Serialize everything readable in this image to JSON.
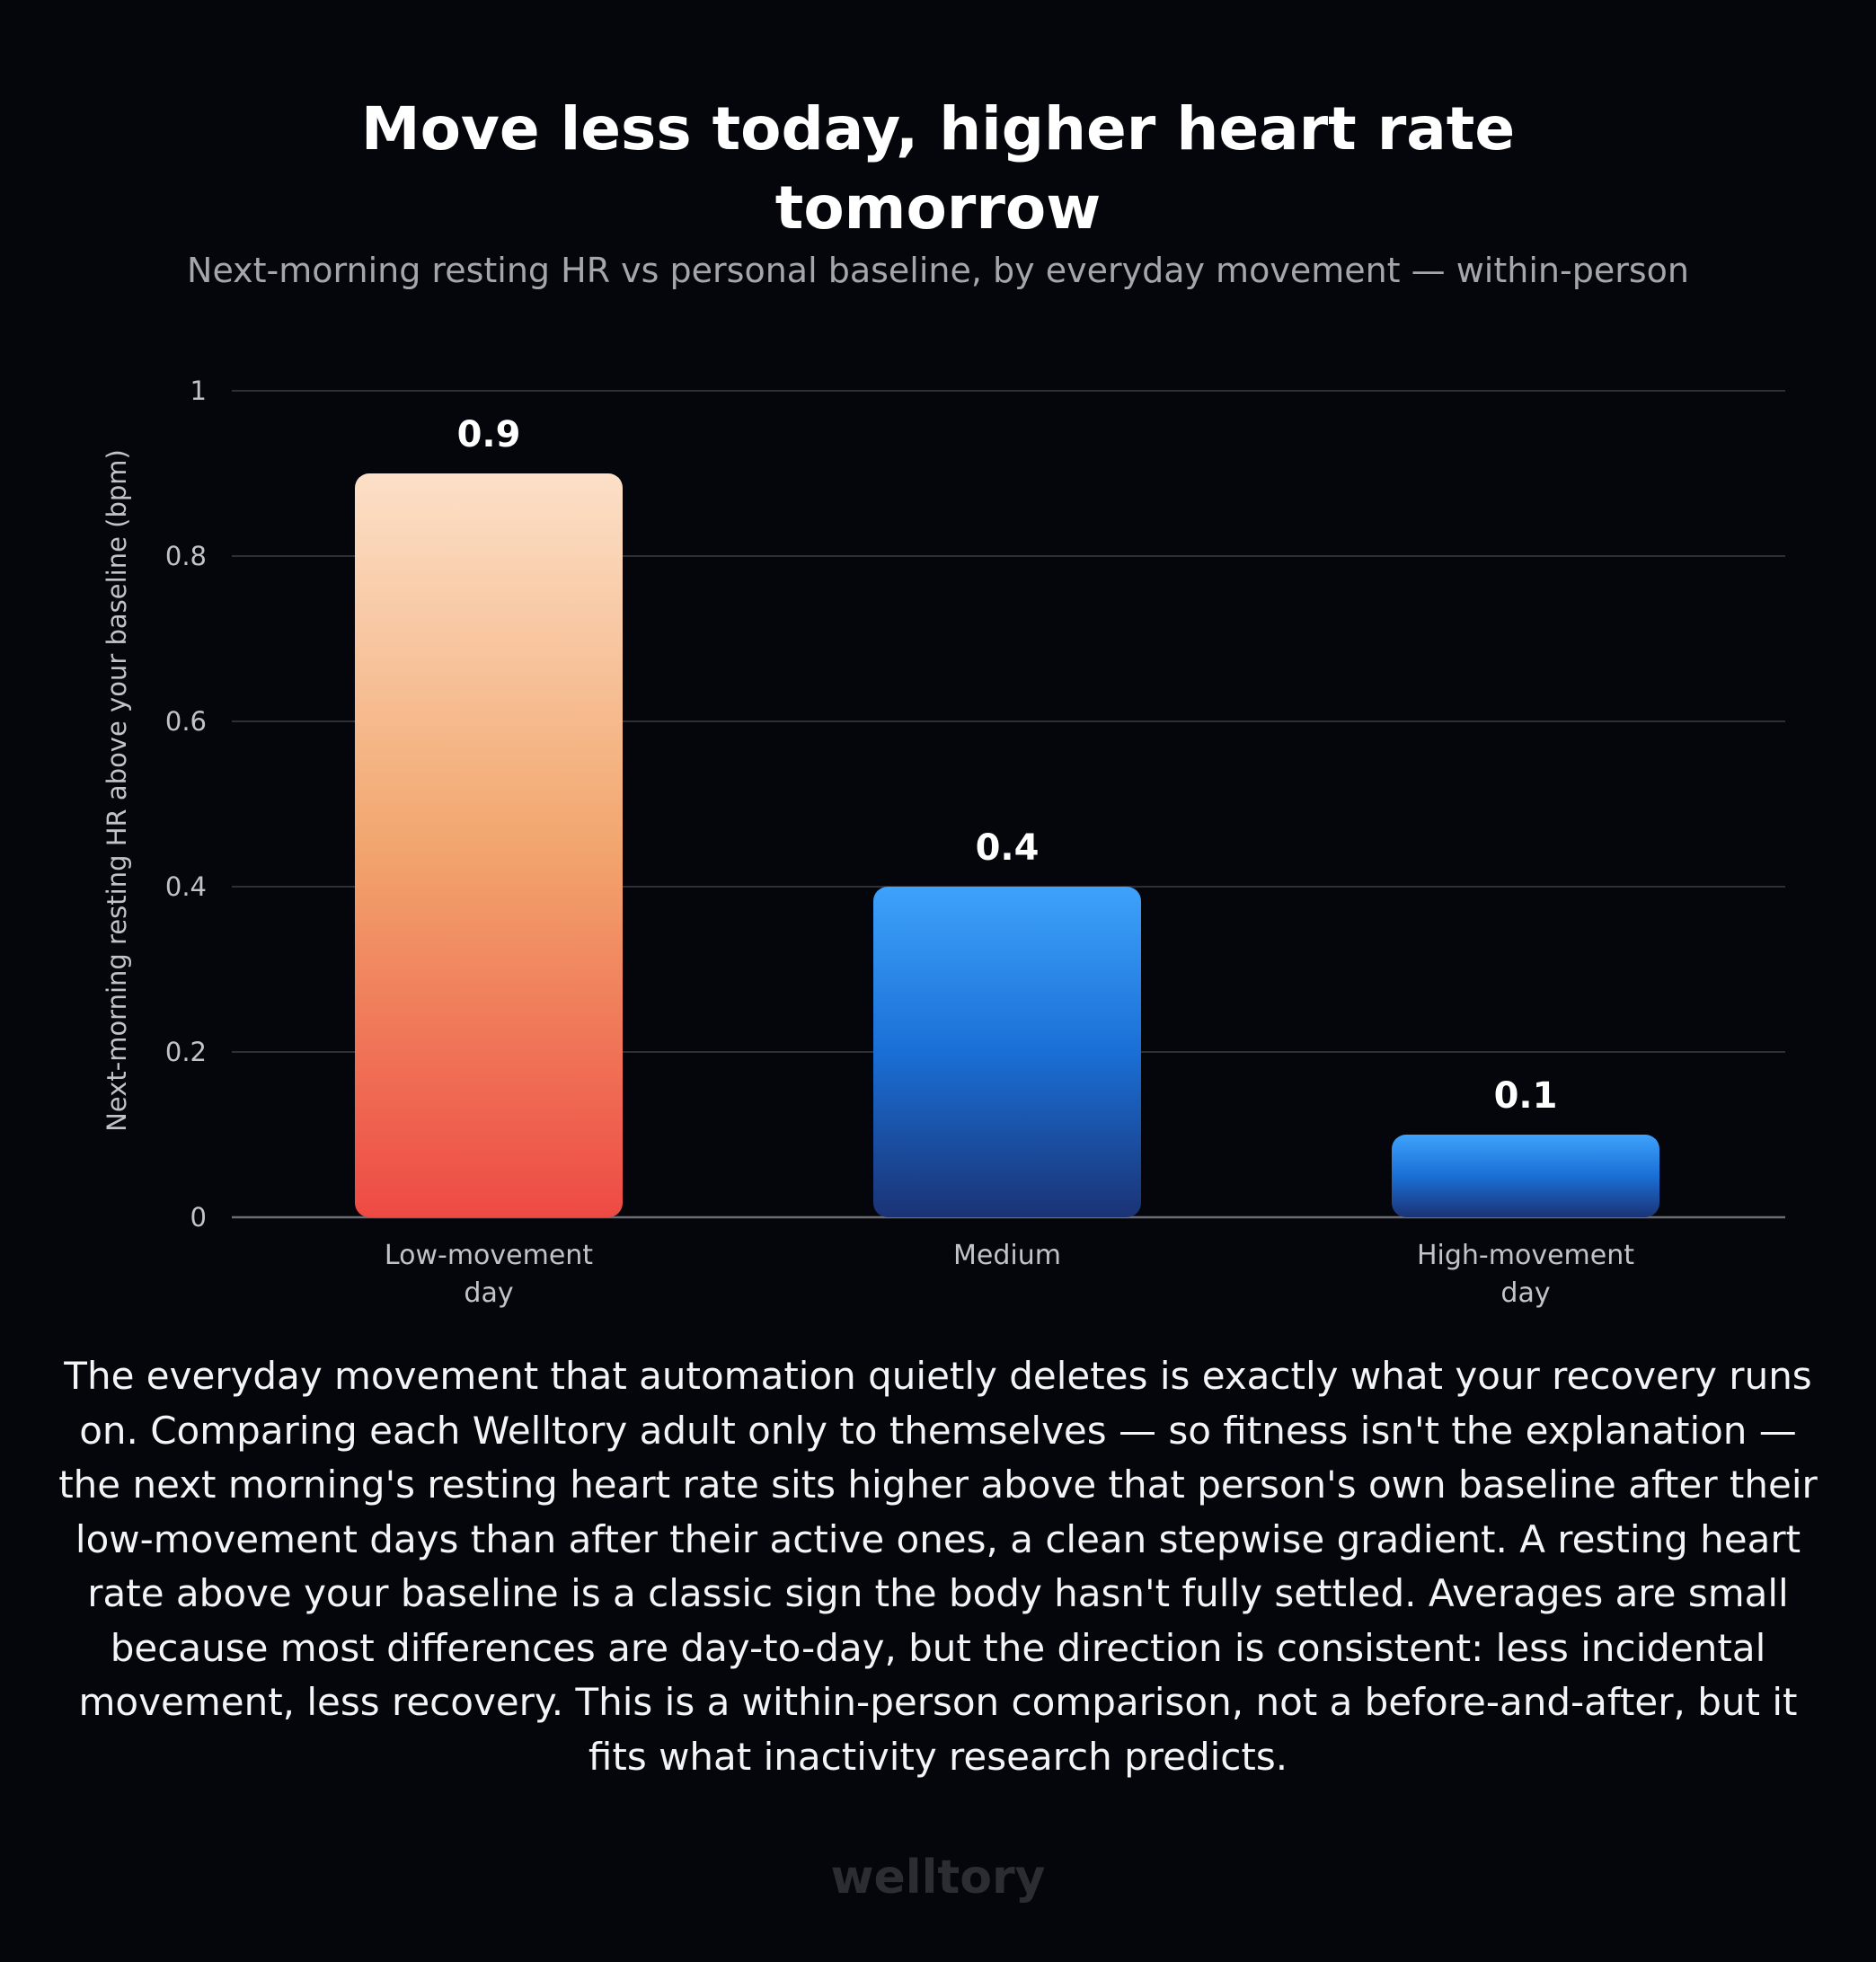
{
  "header": {
    "title": "Move less today, higher heart rate\ntomorrow",
    "subtitle": "Next-morning resting HR vs personal baseline, by everyday movement — within-person"
  },
  "chart_data": {
    "type": "bar",
    "categories": [
      [
        "Low-movement",
        "day"
      ],
      [
        "Medium"
      ],
      [
        "High-movement",
        "day"
      ]
    ],
    "values": [
      0.9,
      0.4,
      0.1
    ],
    "value_labels": [
      "0.9",
      "0.4",
      "0.1"
    ],
    "ylabel": "Next-morning resting HR above your baseline (bpm)",
    "ylim": [
      0,
      1
    ],
    "yticks": [
      0,
      0.2,
      0.4,
      0.6,
      0.8,
      1
    ],
    "ytick_labels": [
      "0",
      "0.2",
      "0.4",
      "0.6",
      "0.8",
      "1"
    ],
    "grid": true,
    "colors": {
      "highlight_gradient": [
        "#fce0c8",
        "#f2a66e",
        "#ee4a44"
      ],
      "normal_gradient": [
        "#3ea2fb",
        "#1a6fd6",
        "#1b3375"
      ],
      "grid": "#2e2f36",
      "axis": "#6b6c72",
      "tick_text": "#c2c3c8",
      "label_text": "#ffffff"
    }
  },
  "description": "The everyday movement that automation quietly deletes is exactly what your recovery runs on. Comparing each Welltory adult only to themselves — so fitness isn't the explanation — the next morning's resting heart rate sits higher above that person's own baseline after their low-movement days than after their active ones, a clean stepwise gradient. A resting heart rate above your baseline is a classic sign the body hasn't fully settled. Averages are small because most differences are day-to-day, but the direction is consistent: less incidental movement, less recovery. This is a within-person comparison, not a before-and-after, but it fits what inactivity research predicts.",
  "footer": {
    "brand": "welltory"
  }
}
